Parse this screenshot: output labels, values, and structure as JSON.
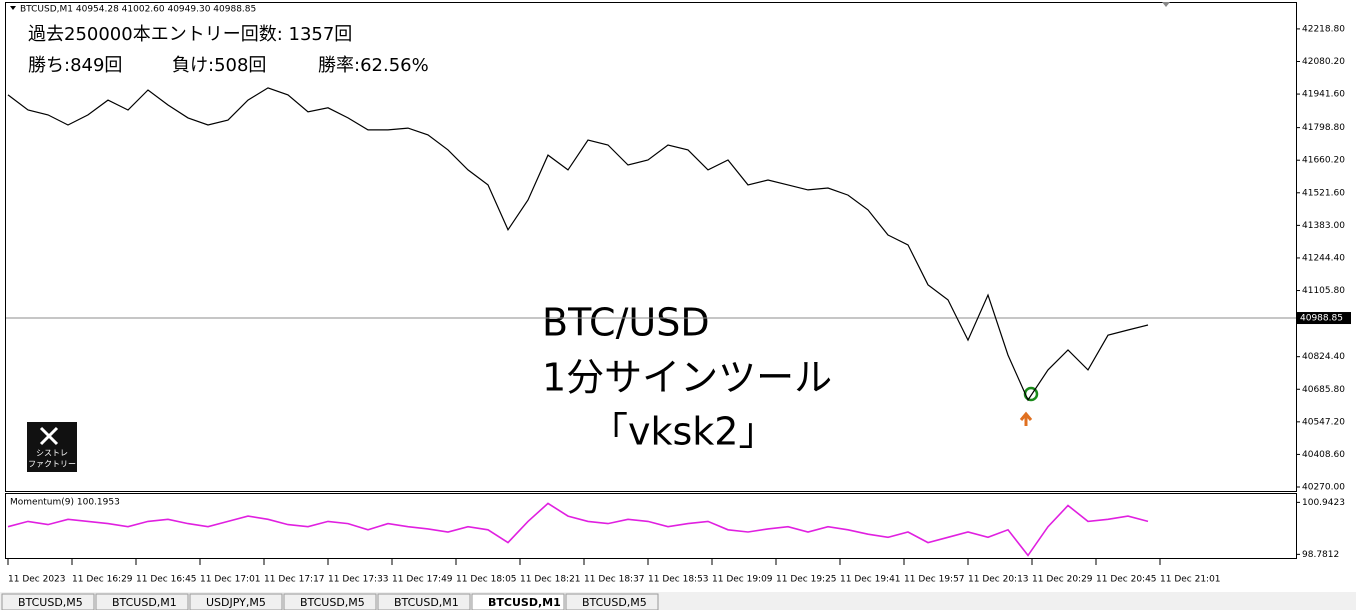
{
  "header": "BTCUSD,M1  40954.28 41002.60 40949.30 40988.85",
  "stats": {
    "line1": "過去250000本エントリー回数: 1357回",
    "wins": "勝ち:849回",
    "losses": "負け:508回",
    "rate": "勝率:62.56%"
  },
  "overlay_title": [
    "BTC/USD",
    "1分サインツール",
    "「vksk2」"
  ],
  "logo": [
    "シストレ",
    "ファクトリー"
  ],
  "time_axis": [
    "11 Dec 2023",
    "11 Dec 16:29",
    "11 Dec 16:45",
    "11 Dec 17:01",
    "11 Dec 17:17",
    "11 Dec 17:33",
    "11 Dec 17:49",
    "11 Dec 18:05",
    "11 Dec 18:21",
    "11 Dec 18:37",
    "11 Dec 18:53",
    "11 Dec 19:09",
    "11 Dec 19:25",
    "11 Dec 19:41",
    "11 Dec 19:57",
    "11 Dec 20:13",
    "11 Dec 20:29",
    "11 Dec 20:45",
    "11 Dec 21:01"
  ],
  "tabs": [
    "BTCUSD,M5",
    "BTCUSD,M1",
    "USDJPY,M5",
    "BTCUSD,M5",
    "BTCUSD,M1",
    "BTCUSD,M1",
    "BTCUSD,M5"
  ],
  "chart_data": [
    {
      "type": "line",
      "color": "#000000",
      "ylim": [
        40253,
        42329
      ],
      "last": 40988.85,
      "yticks": [
        {
          "value": 42218.8,
          "label": "42218.80"
        },
        {
          "value": 42080.2,
          "label": "42080.20"
        },
        {
          "value": 41941.6,
          "label": "41941.60"
        },
        {
          "value": 41798.8,
          "label": "41798.80"
        },
        {
          "value": 41660.2,
          "label": "41660.20"
        },
        {
          "value": 41521.6,
          "label": "41521.60"
        },
        {
          "value": 41383,
          "label": "41383.00"
        },
        {
          "value": 41244.4,
          "label": "41244.40"
        },
        {
          "value": 41105.8,
          "label": "41105.80"
        },
        {
          "value": 40824.4,
          "label": "40824.40"
        },
        {
          "value": 40685.8,
          "label": "40685.80"
        },
        {
          "value": 40547.2,
          "label": "40547.20"
        },
        {
          "value": 40408.6,
          "label": "40408.60"
        },
        {
          "value": 40270,
          "label": "40270.00"
        }
      ],
      "values": [
        41938,
        41874,
        41853,
        41810,
        41853,
        41916,
        41874,
        41959,
        41895,
        41840,
        41810,
        41831,
        41916,
        41968,
        41938,
        41866,
        41883,
        41840,
        41789,
        41789,
        41797,
        41768,
        41704,
        41619,
        41555,
        41364,
        41491,
        41682,
        41619,
        41746,
        41725,
        41640,
        41661,
        41725,
        41704,
        41619,
        41661,
        41555,
        41576,
        41555,
        41534,
        41542,
        41512,
        41449,
        41342,
        41300,
        41130,
        41066,
        40895,
        41087,
        40831,
        40640,
        40768,
        40853,
        40768,
        40916,
        40938,
        40959
      ]
    },
    {
      "type": "line",
      "title": "Momentum(9) 100.1953",
      "color": "#e020e0",
      "ylim": [
        98.63,
        101.29
      ],
      "yticks": [
        100.9423,
        98.7812
      ],
      "values": [
        99.93,
        100.15,
        100.02,
        100.24,
        100.15,
        100.06,
        99.93,
        100.15,
        100.24,
        100.06,
        99.93,
        100.15,
        100.37,
        100.24,
        100.02,
        99.93,
        100.15,
        100.06,
        99.8,
        100.06,
        99.93,
        99.84,
        99.71,
        99.93,
        99.8,
        99.27,
        100.15,
        100.9,
        100.37,
        100.15,
        100.06,
        100.24,
        100.15,
        99.93,
        100.06,
        100.15,
        99.8,
        99.71,
        99.84,
        99.93,
        99.71,
        99.93,
        99.8,
        99.62,
        99.49,
        99.71,
        99.27,
        99.49,
        99.71,
        99.49,
        99.8,
        98.74,
        99.93,
        100.81,
        100.15,
        100.24,
        100.37,
        100.15
      ]
    }
  ]
}
